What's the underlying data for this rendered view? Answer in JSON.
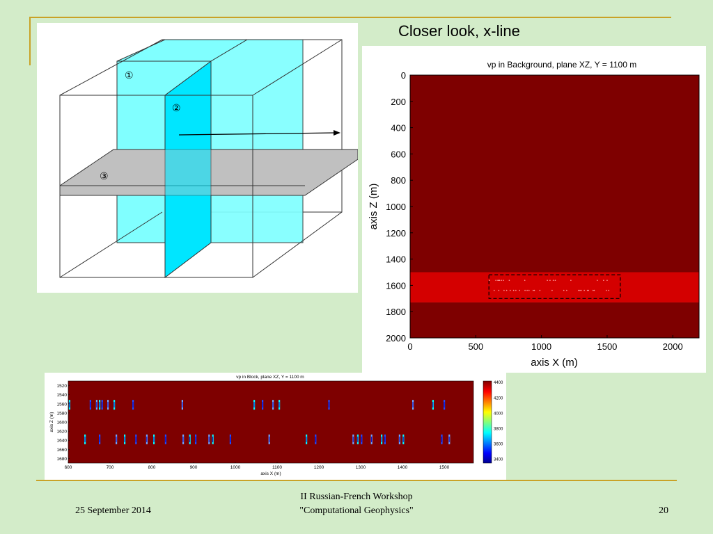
{
  "slide": {
    "title": "Closer look, x-line",
    "footer": {
      "date": "25 September 2014",
      "workshop_line1": "II Russian-French Workshop",
      "workshop_line2": "\"Computational Geophysics\"",
      "page_number": "20"
    }
  },
  "cube_diagram": {
    "labels": [
      "①",
      "②",
      "③"
    ],
    "colors": {
      "plane": "#80ffff",
      "plane_dark": "#00e6ff",
      "horizontal": "#c0c0c0"
    }
  },
  "chart_data": [
    {
      "type": "heatmap",
      "title": "vp in Background, plane XZ,  Y = 1100 m",
      "xlabel": "axis X (m)",
      "ylabel": "axis Z (m)",
      "xlim": [
        0,
        2200
      ],
      "ylim": [
        0,
        2000
      ],
      "x_ticks": [
        "0",
        "500",
        "1000",
        "1500",
        "2000"
      ],
      "y_ticks": [
        "0",
        "200",
        "400",
        "600",
        "800",
        "1000",
        "1200",
        "1400",
        "1600",
        "1800",
        "2000"
      ],
      "bands": [
        {
          "z_from": 0,
          "z_to": 1500,
          "color": "#7e0000"
        },
        {
          "z_from": 1500,
          "z_to": 1730,
          "color": "#d40000"
        },
        {
          "z_from": 1730,
          "z_to": 2000,
          "color": "#7e0000"
        }
      ],
      "highlight_box": {
        "x_from": 600,
        "x_to": 1600,
        "z_from": 1520,
        "z_to": 1700
      }
    },
    {
      "type": "heatmap",
      "title": "vp in Block, plane XZ, Y = 1100 m",
      "xlabel": "axis X (m)",
      "ylabel": "axis Z (m)",
      "xlim": [
        600,
        1570
      ],
      "ylim": [
        1510,
        1690
      ],
      "x_ticks": [
        "600",
        "700",
        "800",
        "900",
        "1000",
        "1100",
        "1200",
        "1300",
        "1400",
        "1500"
      ],
      "y_ticks": [
        "1520",
        "1540",
        "1560",
        "1580",
        "1600",
        "1620",
        "1640",
        "1660",
        "1680"
      ],
      "background_color": "#7e0000",
      "colorbar": {
        "ticks": [
          "4400",
          "4200",
          "4000",
          "3800",
          "3600",
          "3400"
        ],
        "min": 3350,
        "max": 4420
      },
      "anomaly_rows": [
        {
          "z": 1562,
          "x": [
            603,
            653,
            668,
            675,
            681,
            695,
            710,
            755,
            873,
            1045,
            1065,
            1090,
            1105,
            1224,
            1425,
            1473,
            1500
          ]
        },
        {
          "z": 1638,
          "x": [
            640,
            675,
            715,
            735,
            762,
            788,
            805,
            833,
            875,
            891,
            905,
            937,
            946,
            988,
            1081,
            1170,
            1192,
            1282,
            1293,
            1302,
            1326,
            1350,
            1358,
            1393,
            1402,
            1494,
            1512
          ]
        }
      ]
    }
  ]
}
